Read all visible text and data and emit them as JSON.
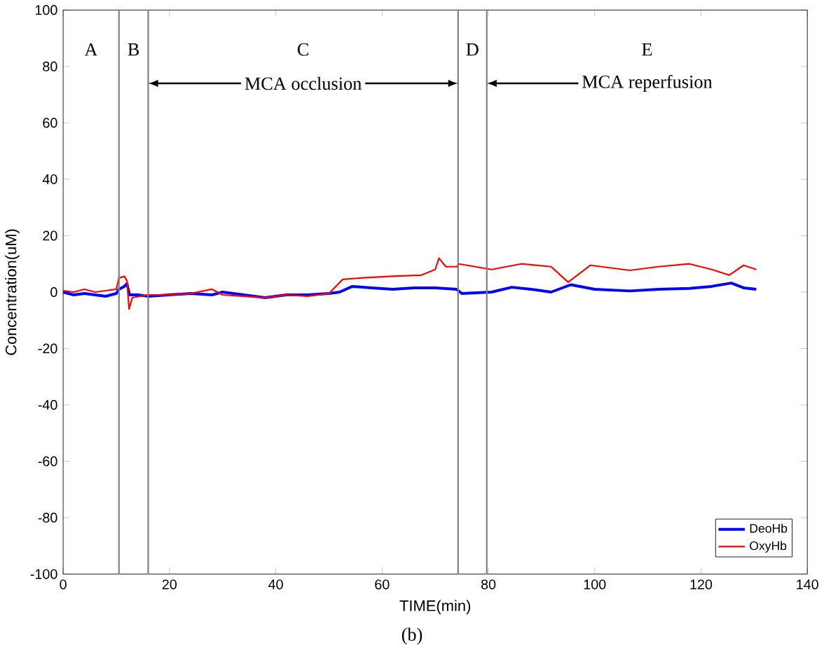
{
  "chart_data": {
    "type": "line",
    "xlabel": "TIME(min)",
    "ylabel": "Concentration(uM)",
    "xlim": [
      0,
      140
    ],
    "ylim": [
      -100,
      100
    ],
    "xticks": [
      0,
      20,
      40,
      60,
      80,
      100,
      120,
      140
    ],
    "yticks": [
      -100,
      -80,
      -60,
      -40,
      -20,
      0,
      20,
      40,
      60,
      80,
      100
    ],
    "legend": "bottom right",
    "grid": false,
    "series": [
      {
        "name": "DeoHb",
        "color": "#0000ff",
        "x": [
          0,
          2,
          4,
          6,
          8,
          10,
          10.5,
          11.5,
          12,
          12.5,
          14,
          16,
          20,
          24,
          28,
          30,
          34,
          38,
          42,
          46,
          50,
          52,
          54.4,
          58,
          62,
          66,
          70,
          74,
          75,
          80.6,
          84.4,
          88,
          91.8,
          95.5,
          100,
          106.6,
          112,
          117.8,
          122,
          125.7,
          128,
          130.4
        ],
        "values": [
          0,
          -1,
          -0.5,
          -1,
          -1.5,
          -0.5,
          1,
          2,
          3,
          -1,
          -1,
          -1.5,
          -1,
          -0.5,
          -1,
          0,
          -1,
          -2,
          -1,
          -1,
          -0.5,
          0,
          2,
          1.5,
          1,
          1.5,
          1.5,
          1,
          -0.5,
          0,
          1.7,
          1,
          0,
          2.6,
          1,
          0.4,
          1,
          1.3,
          2,
          3.2,
          1.5,
          1
        ]
      },
      {
        "name": "OxyHb",
        "color": "#ff0000",
        "x": [
          0,
          2,
          4,
          6,
          8,
          10,
          10.5,
          11.5,
          12,
          12.4,
          13,
          16,
          20,
          24,
          28,
          30,
          34,
          38,
          42,
          46,
          50,
          52.6,
          56,
          61.9,
          67.4,
          70,
          70.7,
          72,
          74.1,
          74.4,
          80.6,
          86.2,
          91.8,
          95,
          99.2,
          106.6,
          112,
          117.8,
          122,
          125.3,
          128,
          130.4
        ],
        "values": [
          0.5,
          0,
          1,
          0,
          0.5,
          1,
          5,
          5.6,
          4,
          -6,
          -2,
          -1,
          -1,
          -0.5,
          1,
          -1,
          -1.5,
          -2,
          -1,
          -1.5,
          -0.5,
          4.5,
          5,
          5.6,
          6,
          8,
          12,
          9,
          9,
          10,
          8,
          10,
          9,
          3.5,
          9.5,
          7.7,
          9,
          10,
          8,
          6,
          9.5,
          8
        ]
      }
    ],
    "ref_lines": [
      {
        "axis": "x",
        "value": 10.5,
        "color": "#808080"
      },
      {
        "axis": "x",
        "value": 16,
        "color": "#808080"
      },
      {
        "axis": "x",
        "value": 74.3,
        "color": "#808080"
      },
      {
        "axis": "x",
        "value": 79.7,
        "color": "#808080"
      }
    ],
    "annotations": [
      "A",
      "B",
      "C",
      "D",
      "E",
      {
        "text": "MCA occlusion",
        "x": 16,
        "y": 74
      },
      {
        "text": "MCA reperfusion",
        "x": 79.7,
        "y": 74
      },
      "(b)"
    ]
  }
}
